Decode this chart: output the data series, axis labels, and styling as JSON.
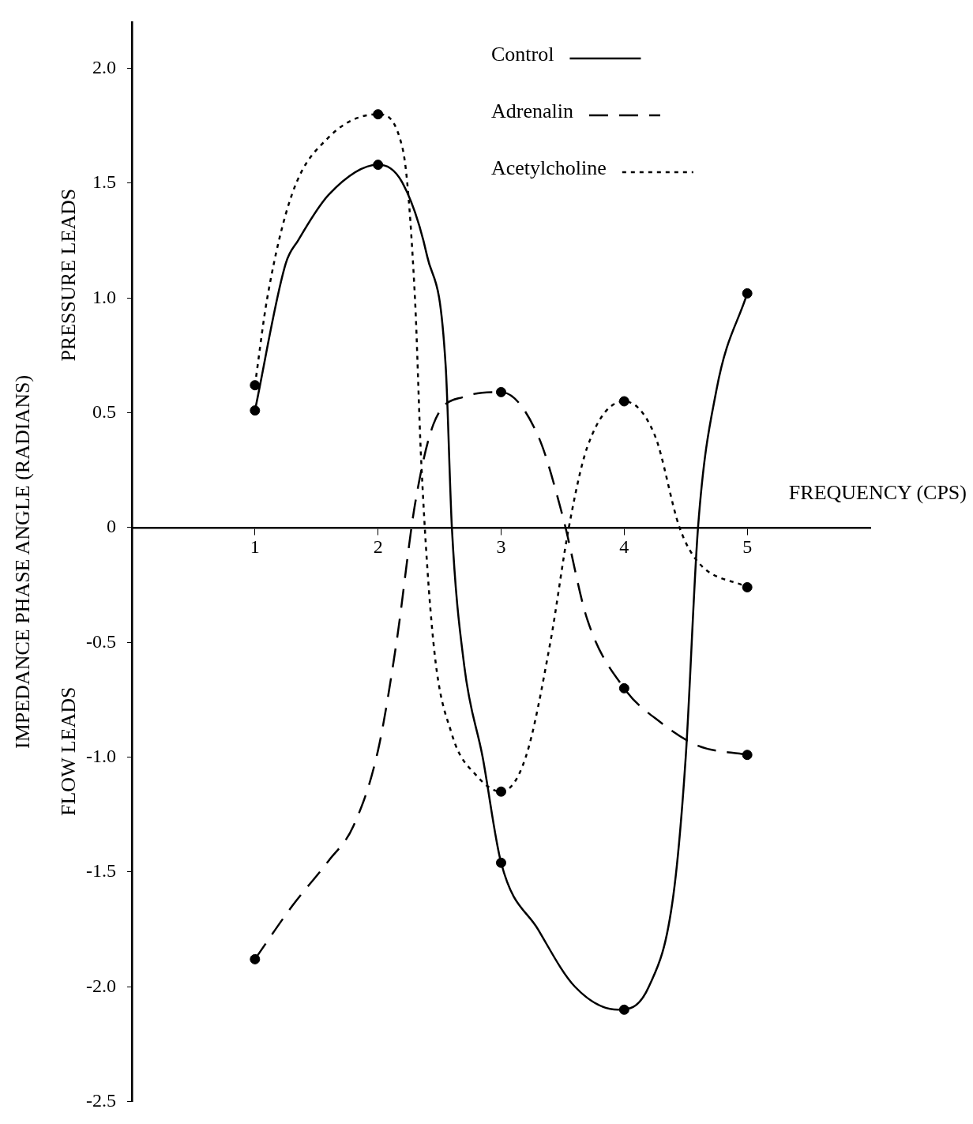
{
  "chart_data": {
    "type": "line",
    "xlabel": "FREQUENCY (CPS)",
    "ylabel": "IMPEDANCE PHASE ANGLE (RADIANS)",
    "annotations": [
      "PRESSURE LEADS",
      "FLOW LEADS"
    ],
    "xlim": [
      0,
      6
    ],
    "xticks": [
      1,
      2,
      3,
      4,
      5
    ],
    "ylim": [
      -2.5,
      2.2
    ],
    "yticks": [
      {
        "value": 2,
        "label": "2.0"
      },
      1.5,
      {
        "value": 1,
        "label": "1.0"
      },
      0.5,
      0,
      -0.5,
      {
        "value": -1,
        "label": "-1.0"
      },
      -1.5,
      {
        "value": -2,
        "label": "-2.0"
      },
      -2.5
    ],
    "grid": false,
    "legend": "top right",
    "series": [
      {
        "name": "Control",
        "color": "#000000",
        "line_style": "solid",
        "marker": "none",
        "x": [
          1,
          1.25,
          1.35,
          1.6,
          2,
          2.2,
          2.4,
          2.55,
          2.6,
          2.7,
          2.85,
          3,
          3.3,
          3.6,
          3.95,
          4.2,
          4.4,
          4.5,
          4.6,
          4.75,
          5
        ],
        "values": [
          0.51,
          1.15,
          1.25,
          1.45,
          1.58,
          1.5,
          1.18,
          0.7,
          0,
          -0.6,
          -1.0,
          -1.46,
          -1.75,
          -2.0,
          -2.1,
          -2.0,
          -1.6,
          -1.0,
          0,
          0.6,
          1.02
        ]
      },
      {
        "name": "Adrenalin",
        "color": "#000000",
        "line_style": "dashed",
        "marker": "none",
        "x": [
          1,
          1.3,
          1.6,
          1.8,
          2,
          2.15,
          2.3,
          2.45,
          2.7,
          3,
          3.3,
          3.5,
          3.7,
          4,
          4.3,
          4.6,
          5
        ],
        "values": [
          -1.88,
          -1.65,
          -1.45,
          -1.3,
          -0.97,
          -0.5,
          0.1,
          0.45,
          0.57,
          0.59,
          0.4,
          0.05,
          -0.4,
          -0.7,
          -0.85,
          -0.95,
          -0.99
        ]
      },
      {
        "name": "Acetylcholine",
        "color": "#000000",
        "line_style": "dotted",
        "marker": "none",
        "x": [
          1,
          1.1,
          1.3,
          1.6,
          2,
          2.2,
          2.3,
          2.35,
          2.45,
          2.6,
          2.8,
          3,
          3.2,
          3.4,
          3.55,
          3.7,
          4,
          4.25,
          4.45,
          4.6,
          5
        ],
        "values": [
          0.62,
          1.0,
          1.45,
          1.7,
          1.8,
          1.65,
          1.0,
          0.3,
          -0.5,
          -0.9,
          -1.08,
          -1.15,
          -1.0,
          -0.5,
          0,
          0.35,
          0.55,
          0.4,
          0,
          -0.15,
          -0.26
        ]
      },
      {
        "type": "scatter",
        "color": "#000000",
        "marker": "circle",
        "x": [
          1,
          2,
          3,
          4,
          5,
          1,
          3,
          4,
          5,
          1,
          2,
          3,
          4,
          5
        ],
        "values": [
          0.51,
          1.58,
          -1.46,
          -2.1,
          1.02,
          -1.88,
          0.59,
          -0.7,
          -0.99,
          0.62,
          1.8,
          -1.15,
          0.55,
          -0.26
        ]
      }
    ]
  }
}
